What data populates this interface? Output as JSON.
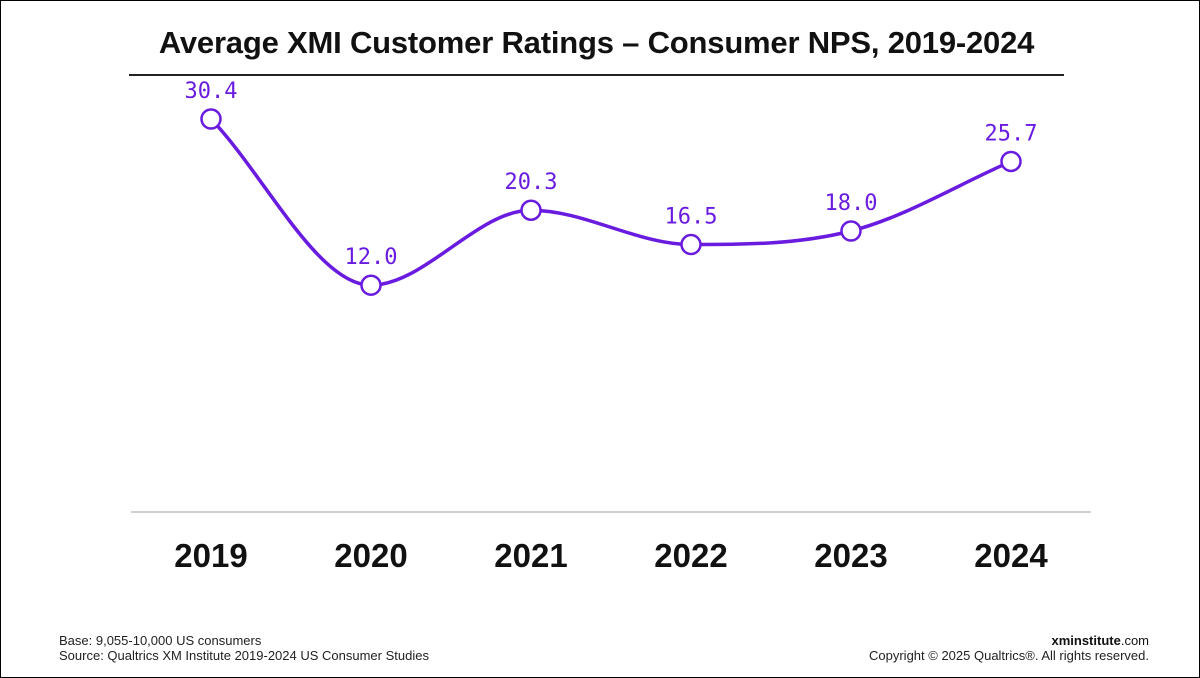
{
  "chart_data": {
    "type": "line",
    "title": "Average XMI Customer Ratings – Consumer NPS, 2019-2024",
    "categories": [
      "2019",
      "2020",
      "2021",
      "2022",
      "2023",
      "2024"
    ],
    "values": [
      30.4,
      12.0,
      20.3,
      16.5,
      18.0,
      25.7
    ],
    "value_labels": [
      "30.4",
      "12.0",
      "20.3",
      "16.5",
      "18.0",
      "25.7"
    ],
    "series": [
      {
        "name": "Consumer NPS",
        "values": [
          30.4,
          12.0,
          20.3,
          16.5,
          18.0,
          25.7
        ]
      }
    ],
    "xlabel": "",
    "ylabel": "",
    "ylim": [
      -13,
      33.5
    ],
    "grid": false,
    "legend": "none",
    "colors": {
      "line": "#6a1be0",
      "label": "#6a1be0",
      "marker_fill": "#ffffff",
      "baseline": "#d0d0d0",
      "axis_text": "#111111"
    }
  },
  "footer": {
    "base": "Base: 9,055-10,000 US consumers",
    "source": "Source: Qualtrics XM Institute 2019-2024 US Consumer Studies",
    "brand_bold": "xminstitute",
    "brand_rest": ".com",
    "copyright": "Copyright © 2025 Qualtrics®. All rights reserved."
  }
}
